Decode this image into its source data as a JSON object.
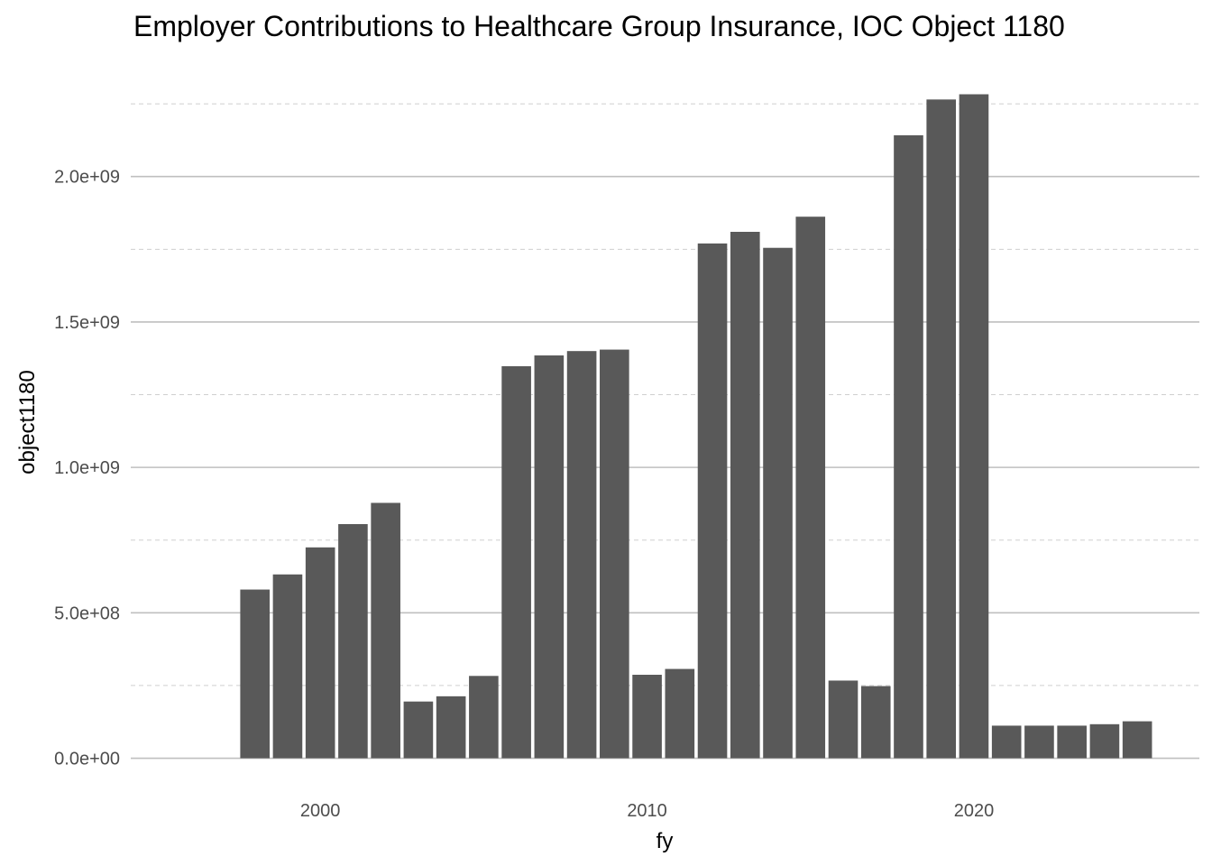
{
  "chart_data": {
    "type": "bar",
    "title": "Employer Contributions to Healthcare Group Insurance, IOC Object 1180",
    "xlabel": "fy",
    "ylabel": "object1180",
    "x": [
      1998,
      1999,
      2000,
      2001,
      2002,
      2003,
      2004,
      2005,
      2006,
      2007,
      2008,
      2009,
      2010,
      2011,
      2012,
      2013,
      2014,
      2015,
      2016,
      2017,
      2018,
      2019,
      2020,
      2021,
      2022,
      2023,
      2024,
      2025
    ],
    "values": [
      580000000,
      632000000,
      725000000,
      805000000,
      878000000,
      195000000,
      213000000,
      283000000,
      1348000000,
      1385000000,
      1400000000,
      1405000000,
      287000000,
      307000000,
      1770000000,
      1810000000,
      1755000000,
      1862000000,
      267000000,
      248000000,
      2142000000,
      2265000000,
      2283000000,
      112000000,
      112000000,
      112000000,
      117000000,
      127000000
    ],
    "xlim": [
      1994.2,
      2026.9
    ],
    "ylim": [
      -110000000,
      2390000000
    ],
    "x_ticks": [
      2000,
      2010,
      2020
    ],
    "x_tick_labels": [
      "2000",
      "2010",
      "2020"
    ],
    "y_ticks": [
      0,
      500000000,
      1000000000,
      1500000000,
      2000000000
    ],
    "y_tick_labels": [
      "0.0e+00",
      "5.0e+08",
      "1.0e+09",
      "1.5e+09",
      "2.0e+09"
    ],
    "y_minor_ticks": [
      250000000,
      750000000,
      1250000000,
      1750000000,
      2250000000
    ],
    "bar_width": 0.9,
    "grid": true,
    "legend": "none",
    "colors": {
      "bar": "#595959",
      "grid": "#bfbfbf",
      "background": "#ffffff"
    }
  }
}
